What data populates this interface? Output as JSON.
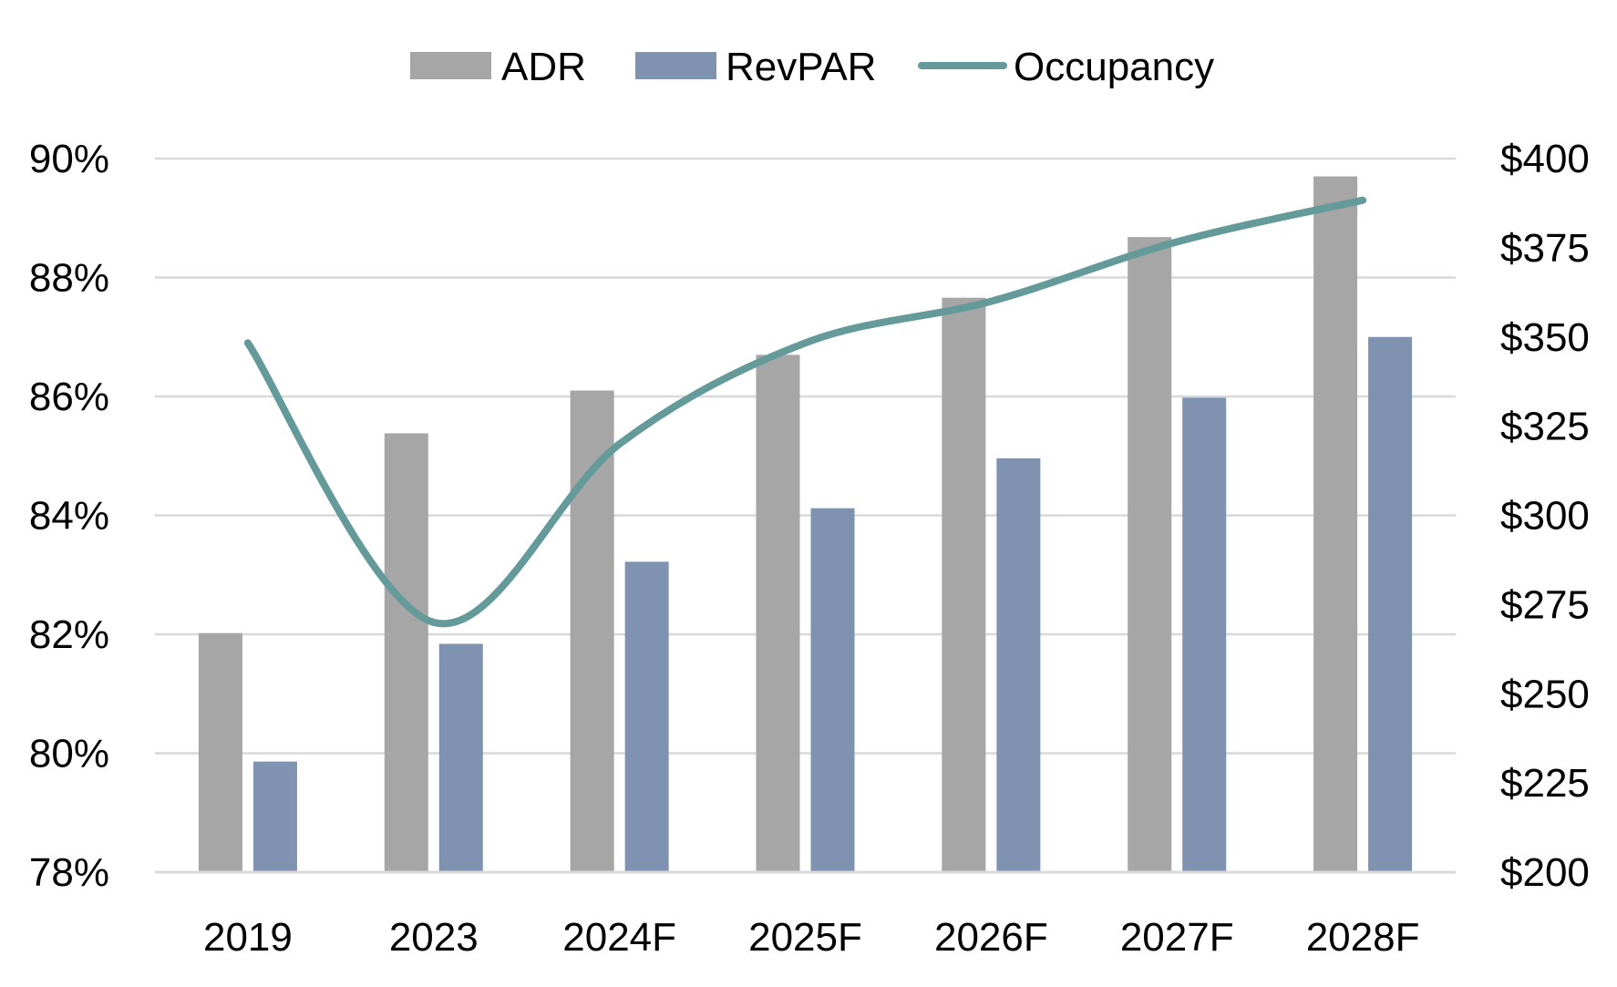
{
  "chart_data": {
    "type": "bar",
    "categories": [
      "2019",
      "2023",
      "2024F",
      "2025F",
      "2026F",
      "2027F",
      "2028F"
    ],
    "series": [
      {
        "name": "ADR",
        "chart_type": "bar",
        "axis": "right",
        "color": "#a6a6a6",
        "values": [
          267,
          323,
          335,
          345,
          361,
          378,
          395
        ]
      },
      {
        "name": "RevPAR",
        "chart_type": "bar",
        "axis": "right",
        "color": "#7f92b0",
        "values": [
          231,
          264,
          287,
          302,
          316,
          333,
          350
        ]
      },
      {
        "name": "Occupancy",
        "chart_type": "line",
        "axis": "left",
        "color": "#659a9a",
        "values": [
          86.9,
          82.2,
          85.2,
          86.9,
          87.6,
          88.6,
          89.3
        ]
      }
    ],
    "y_left": {
      "range": [
        78,
        90
      ],
      "ticks": [
        "78%",
        "80%",
        "82%",
        "84%",
        "86%",
        "88%",
        "90%"
      ]
    },
    "y_right": {
      "range": [
        200,
        400
      ],
      "ticks": [
        "$200",
        "$225",
        "$250",
        "$275",
        "$300",
        "$325",
        "$350",
        "$375",
        "$400"
      ]
    },
    "grid": true,
    "legend_position": "top"
  }
}
